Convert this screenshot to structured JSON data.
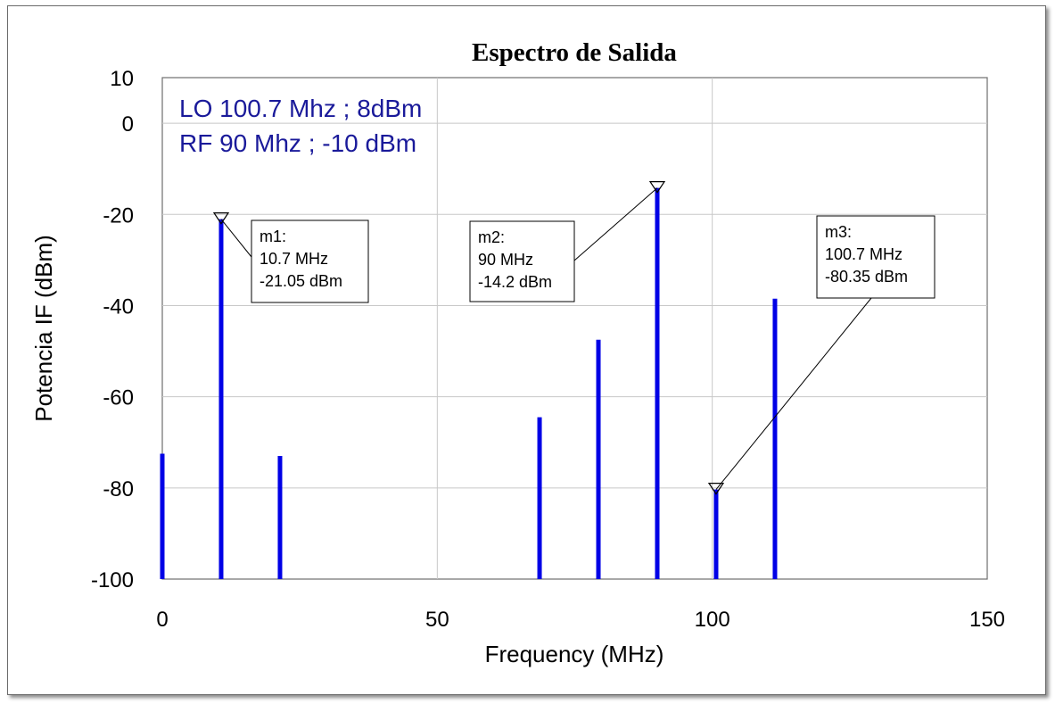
{
  "chart_data": {
    "type": "bar",
    "title": "Espectro de Salida",
    "xlabel": "Frequency (MHz)",
    "ylabel": "Potencia IF (dBm)",
    "xlim": [
      0,
      150
    ],
    "ylim": [
      -100,
      10
    ],
    "xticks": [
      "0",
      "50",
      "100",
      "150"
    ],
    "yticks": [
      "10",
      "0",
      "-20",
      "-40",
      "-60",
      "-80",
      "-100"
    ],
    "grid": true,
    "series": [
      {
        "color": "#0000e6",
        "x": [
          0,
          10.7,
          21.4,
          68.6,
          79.3,
          90,
          100.7,
          111.4
        ],
        "y": [
          -72.5,
          -21.05,
          -73,
          -64.5,
          -47.5,
          -14.2,
          -80.35,
          -38.5
        ]
      }
    ],
    "annotations": [
      "LO 100.7 Mhz ; 8dBm",
      "RF 90 Mhz ; -10 dBm"
    ],
    "markers": [
      {
        "label": "m1:",
        "freq": "10.7 MHz",
        "power": "-21.05 dBm",
        "x": 10.7,
        "y": -21.05
      },
      {
        "label": "m2:",
        "freq": "90 MHz",
        "power": "-14.2 dBm",
        "x": 90,
        "y": -14.2
      },
      {
        "label": "m3:",
        "freq": "100.7 MHz",
        "power": "-80.35 dBm",
        "x": 100.7,
        "y": -80.35
      }
    ]
  }
}
